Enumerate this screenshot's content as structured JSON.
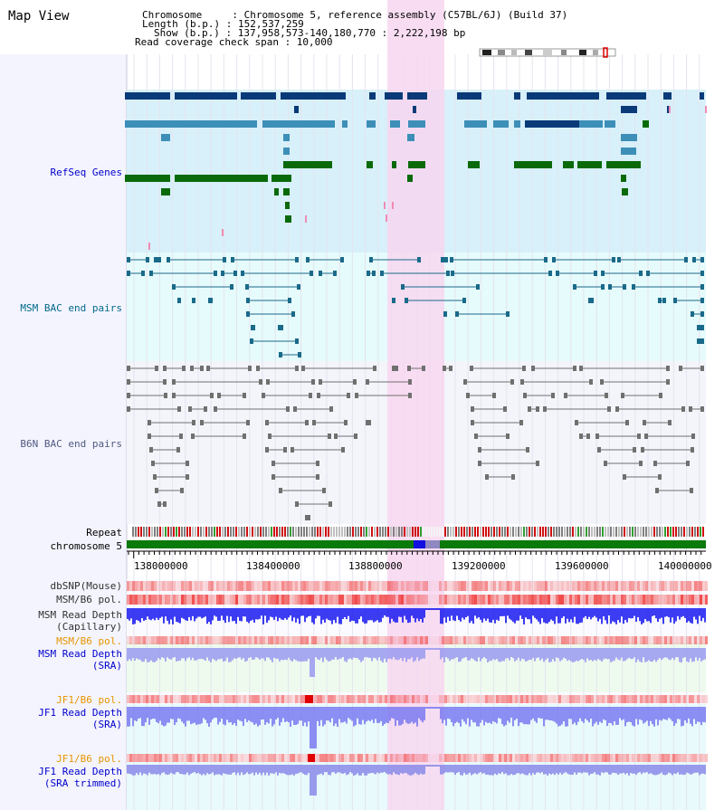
{
  "view": {
    "title": "Map View"
  },
  "info": {
    "chromosome": "Chromosome     : Chromosome 5, reference assembly (C57BL/6J) (Build 37)",
    "length": "Length (b.p.) : 152,537,259",
    "show": "Show (b.p.) : 137,958,573-140,180,770 : 2,222,198 bp",
    "span": "Read coverage check span : 10,000"
  },
  "tracks": {
    "refseq": "RefSeq Genes",
    "msm_bac": "MSM BAC end pairs",
    "b6n_bac": "B6N BAC end pairs",
    "repeat": "Repeat",
    "chromosome": "chromosome 5",
    "dbsnp": "dbSNP(Mouse)",
    "msm_b6_pol_1": "MSM/B6 pol.",
    "msm_depth_cap_1": "MSM Read Depth",
    "msm_depth_cap_2": "(Capillary)",
    "msm_b6_pol_2": "MSM/B6 pol.",
    "msm_depth_sra_1": "MSM Read Depth",
    "msm_depth_sra_2": "(SRA)",
    "jf1_b6_pol_1": "JF1/B6 pol.",
    "jf1_depth_sra_1": "JF1 Read Depth",
    "jf1_depth_sra_2": "(SRA)",
    "jf1_b6_pol_2": "JF1/B6 pol.",
    "jf1_depth_trim_1": "JF1 Read Depth",
    "jf1_depth_trim_2": "(SRA trimmed)"
  },
  "axis": {
    "ticks": [
      "138000000",
      "138400000",
      "138800000",
      "139200000",
      "139600000",
      "140000000"
    ]
  },
  "colors": {
    "refseq_bg": "#d8f0fa",
    "msm_bg": "#e6fbfb",
    "b6n_bg": "#f3f5fb",
    "highlight": "#f7d7f0",
    "gene_dark": "#0a3a78",
    "gene_mid": "#3d8fb8",
    "gene_green": "#0a6a0a",
    "chromosome_bar": "#0a7a0a",
    "depth_blue": "#1a1af0",
    "pol_red": "#f04040",
    "label_blue": "#0000cc",
    "label_orange": "#e69500"
  }
}
